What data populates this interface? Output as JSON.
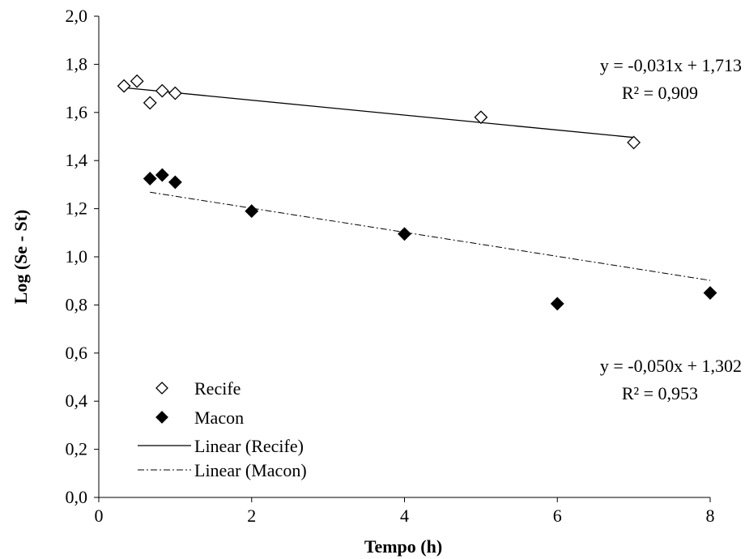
{
  "chart_data": {
    "type": "scatter",
    "title": "",
    "xlabel": "Tempo (h)",
    "ylabel": "Log (Se - St)",
    "xlim": [
      0,
      8
    ],
    "ylim": [
      0,
      2
    ],
    "x_ticks": [
      "0",
      "2",
      "4",
      "6",
      "8"
    ],
    "y_ticks": [
      "0,0",
      "0,2",
      "0,4",
      "0,6",
      "0,8",
      "1,0",
      "1,2",
      "1,4",
      "1,6",
      "1,8",
      "2,0"
    ],
    "x_tick_values": [
      0,
      2,
      4,
      6,
      8
    ],
    "y_tick_values": [
      0,
      0.2,
      0.4,
      0.6,
      0.8,
      1.0,
      1.2,
      1.4,
      1.6,
      1.8,
      2.0
    ],
    "grid": false,
    "legend_position": "bottom-left",
    "series": [
      {
        "name": "Recife",
        "marker": "diamond-open",
        "color": "#000000",
        "x": [
          0.33,
          0.5,
          0.67,
          0.83,
          1.0,
          5.0,
          7.0
        ],
        "y": [
          1.71,
          1.73,
          1.64,
          1.69,
          1.68,
          1.58,
          1.475
        ]
      },
      {
        "name": "Macon",
        "marker": "diamond-filled",
        "color": "#000000",
        "x": [
          0.67,
          0.83,
          1.0,
          2.0,
          4.0,
          6.0,
          8.0
        ],
        "y": [
          1.325,
          1.34,
          1.31,
          1.19,
          1.095,
          0.805,
          0.85
        ]
      }
    ],
    "trendlines": [
      {
        "name": "Linear (Recife)",
        "style": "solid",
        "slope": -0.031,
        "intercept": 1.713,
        "x_range": [
          0.33,
          7.0
        ],
        "equation": "y = -0,031x + 1,713",
        "r2": "R² = 0,909"
      },
      {
        "name": "Linear (Macon)",
        "style": "dash-dot",
        "slope": -0.05,
        "intercept": 1.302,
        "x_range": [
          0.67,
          8.0
        ],
        "equation": "y = -0,050x + 1,302",
        "r2": "R² = 0,953"
      }
    ]
  }
}
